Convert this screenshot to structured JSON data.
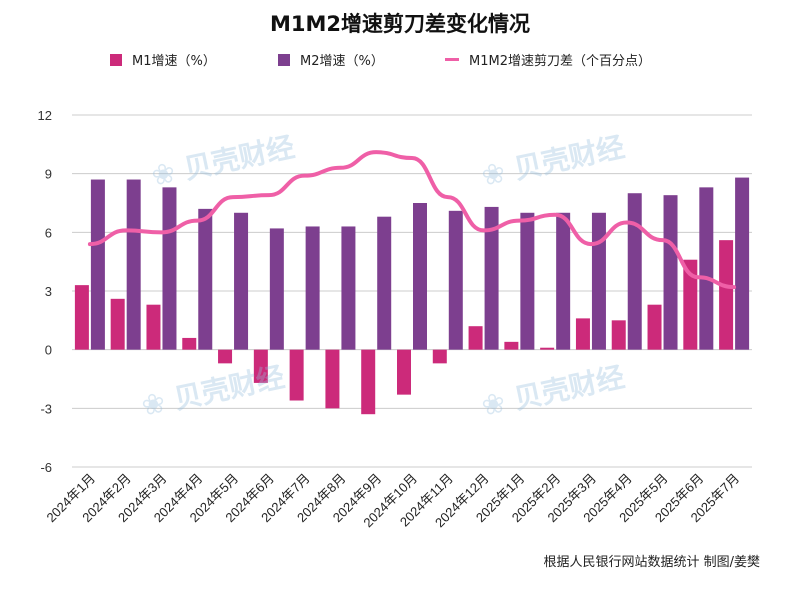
{
  "chart_data": {
    "type": "bar",
    "title": "M1M2增速剪刀差变化情况",
    "categories": [
      "2024年1月",
      "2024年2月",
      "2024年3月",
      "2024年4月",
      "2024年5月",
      "2024年6月",
      "2024年7月",
      "2024年8月",
      "2024年9月",
      "2024年10月",
      "2024年11月",
      "2024年12月",
      "2025年1月",
      "2025年2月",
      "2025年3月",
      "2025年4月",
      "2025年5月",
      "2025年6月",
      "2025年7月"
    ],
    "series": [
      {
        "name": "M1增速（%）",
        "type": "bar",
        "color": "#cc2a7a",
        "values": [
          3.3,
          2.6,
          2.3,
          0.6,
          -0.7,
          -1.7,
          -2.6,
          -3.0,
          -3.3,
          -2.3,
          -0.7,
          1.2,
          0.4,
          0.1,
          1.6,
          1.5,
          2.3,
          4.6,
          5.6
        ]
      },
      {
        "name": "M2增速（%）",
        "type": "bar",
        "color": "#7d3f8f",
        "values": [
          8.7,
          8.7,
          8.3,
          7.2,
          7.0,
          6.2,
          6.3,
          6.3,
          6.8,
          7.5,
          7.1,
          7.3,
          7.0,
          7.0,
          7.0,
          8.0,
          7.9,
          8.3,
          8.8
        ]
      },
      {
        "name": "M1M2增速剪刀差（个百分点）",
        "type": "line",
        "color": "#ef5fa7",
        "values": [
          5.4,
          6.1,
          6.0,
          6.6,
          7.8,
          7.9,
          8.9,
          9.3,
          10.1,
          9.8,
          7.8,
          6.1,
          6.6,
          6.9,
          5.4,
          6.5,
          5.6,
          3.7,
          3.2
        ]
      }
    ],
    "ylim": [
      -6,
      12
    ],
    "yticks": [
      "12",
      "9",
      "6",
      "3",
      "0",
      "-3",
      "-6"
    ],
    "ytick_values": [
      12,
      9,
      6,
      3,
      0,
      -3,
      -6
    ],
    "grid": true,
    "legend_position": "top"
  },
  "source": "根据人民银行网站数据统计 制图/姜樊",
  "watermark": "贝壳财经"
}
